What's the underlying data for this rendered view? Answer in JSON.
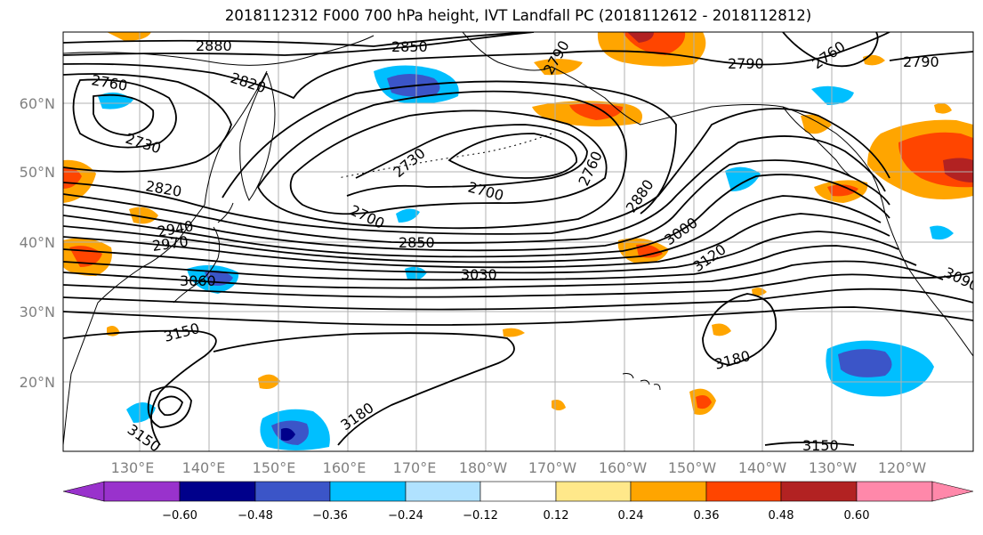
{
  "title": "2018112312 F000 700 hPa height, IVT Landfall PC (2018112612 - 2018112812)",
  "colors": {
    "neg_060": "#9932cc",
    "neg_048": "#00008b",
    "neg_036": "#3b55c8",
    "neg_024": "#00bfff",
    "neg_012": "#b0e2ff",
    "zero": "#ffffff",
    "pos_012": "#ffe88a",
    "pos_024": "#ffa500",
    "pos_036": "#ff4500",
    "pos_048": "#b22222",
    "pos_060": "#ff88aa",
    "grid": "#b0b0b0",
    "coast": "#000000",
    "contour": "#000000",
    "axis_text": "#808080"
  },
  "map": {
    "lat_labels": [
      "60°N",
      "50°N",
      "40°N",
      "30°N",
      "20°N"
    ],
    "lon_labels": [
      "130°E",
      "140°E",
      "150°E",
      "160°E",
      "170°E",
      "180°W",
      "170°W",
      "160°W",
      "150°W",
      "140°W",
      "130°W",
      "120°W"
    ]
  },
  "colorbar": {
    "ticks": [
      "−0.60",
      "−0.48",
      "−0.36",
      "−0.24",
      "−0.12",
      "0.12",
      "0.24",
      "0.36",
      "0.48",
      "0.60"
    ]
  },
  "contour_labels": [
    "2880",
    "2850",
    "2760",
    "2820",
    "2790",
    "2790",
    "2760",
    "2790",
    "2730",
    "2730",
    "2760",
    "2700",
    "2820",
    "2700",
    "2880",
    "2940",
    "2970",
    "2850",
    "3000",
    "3030",
    "3060",
    "3120",
    "3090",
    "3150",
    "3180",
    "3180",
    "3150",
    "3150"
  ]
}
